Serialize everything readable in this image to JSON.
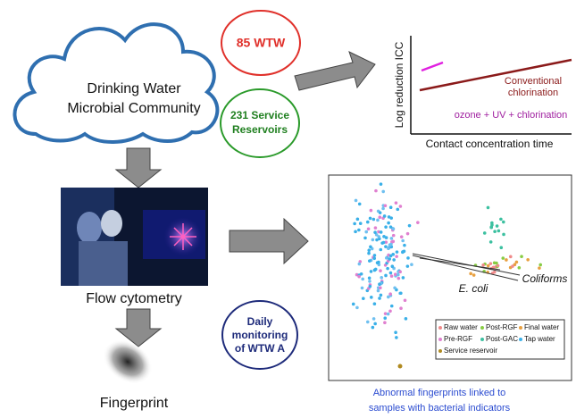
{
  "cloud": {
    "lines": [
      "Drinking Water",
      "Microbial Community"
    ]
  },
  "badges": [
    {
      "lines": [
        "85 WTW"
      ]
    },
    {
      "lines": [
        "231 Service",
        "Reservoirs"
      ]
    },
    {
      "lines": [
        "Daily",
        "monitoring",
        "of WTW A"
      ]
    }
  ],
  "treatment_chart": {
    "y_label": "Log reduction ICC",
    "x_label": "Contact concentration time",
    "labels": [
      "Conventional",
      "chlorination",
      "ozone + UV + chlorination"
    ]
  },
  "photo": {
    "caption": "Flow cytometry"
  },
  "fingerprint": {
    "caption": "Fingerprint"
  },
  "ordination": {
    "annotations": [
      "E. coli",
      "Coliforms"
    ],
    "legend": [
      "Raw water",
      "Post-RGF",
      "Final water",
      "Pre-RGF",
      "Post-GAC",
      "Tap water",
      "Service reservoir"
    ],
    "caption": [
      "Abnormal fingerprints linked to",
      "samples with bacterial indicators"
    ]
  }
}
